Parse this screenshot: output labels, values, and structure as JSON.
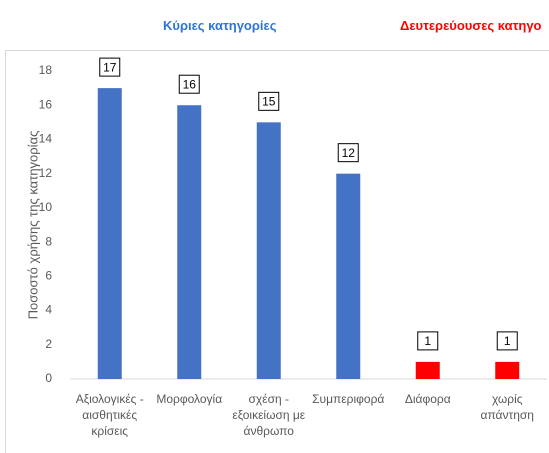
{
  "chart_data": {
    "type": "bar",
    "headers": [
      {
        "text": "Κύριες κατηγορίες",
        "color": "#2e75d6"
      },
      {
        "text": "Δευτερεύουσες κατηγο",
        "color": "#ff0000"
      }
    ],
    "y_label": "Ποσοστό χρήσης της κατηγορίας",
    "categories": [
      "Αξιολογικές - αισθητικές κρίσεις",
      "Μορφολογία",
      "σχέση - εξοικείωση με άνθρωπο",
      "Συμπεριφορά",
      "Διάφορα",
      "χωρίς απάντηση"
    ],
    "values": [
      17,
      16,
      15,
      12,
      1,
      1
    ],
    "colors": [
      "#4472c4",
      "#4472c4",
      "#4472c4",
      "#4472c4",
      "#ff0000",
      "#ff0000"
    ],
    "ylim": [
      0,
      18
    ],
    "yticks": [
      0,
      2,
      4,
      6,
      8,
      10,
      12,
      14,
      16,
      18
    ],
    "grid": false
  }
}
